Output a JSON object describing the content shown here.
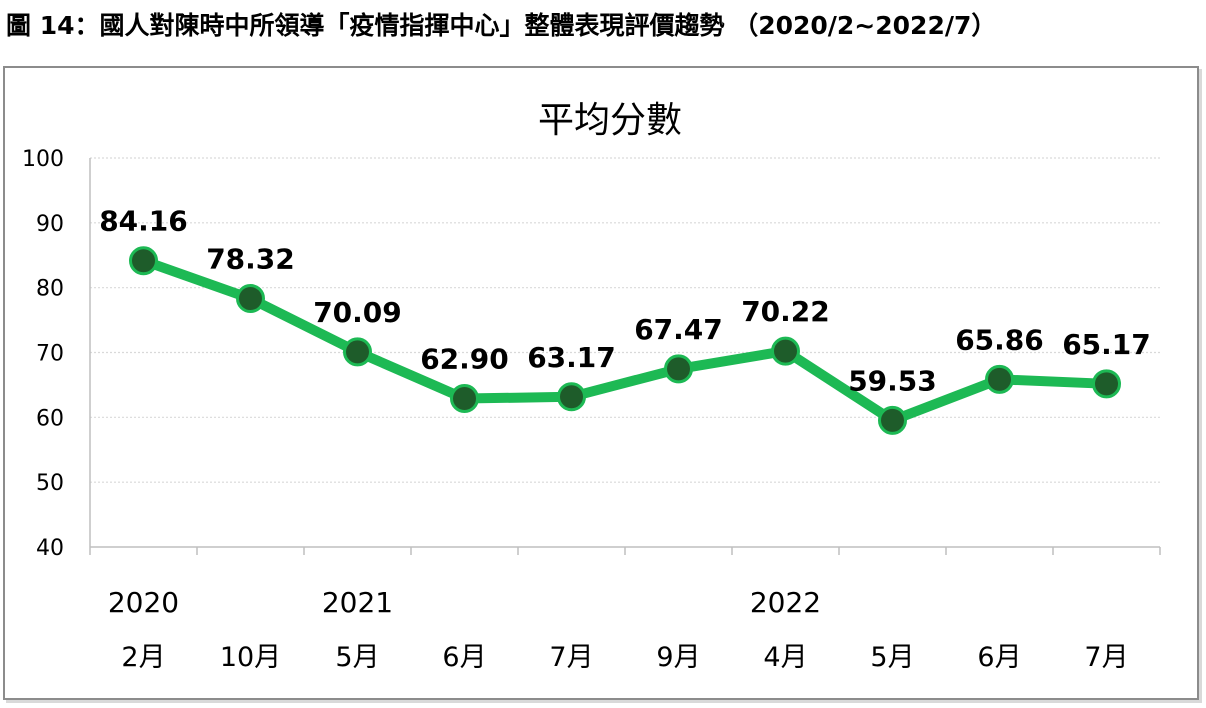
{
  "figure_caption": "圖 14：國人對陳時中所領導「疫情指揮中心」整體表現評價趨勢 （2020/2~2022/7）",
  "colors": {
    "line": "#1db954",
    "marker": "#1e5c2a",
    "grid": "#d9d9d9",
    "axis": "#bfbfbf",
    "frame": "#8c8c8c"
  },
  "chart_data": {
    "type": "line",
    "title": "平均分數",
    "xlabel": "",
    "ylabel": "",
    "categories": [
      "2月",
      "10月",
      "5月",
      "6月",
      "7月",
      "9月",
      "4月",
      "5月",
      "6月",
      "7月"
    ],
    "year_labels": [
      {
        "index": 0,
        "label": "2020"
      },
      {
        "index": 2,
        "label": "2021"
      },
      {
        "index": 6,
        "label": "2022"
      }
    ],
    "series": [
      {
        "values": [
          84.16,
          78.32,
          70.09,
          62.9,
          63.17,
          67.47,
          70.22,
          59.53,
          65.86,
          65.17
        ]
      }
    ],
    "data_labels": [
      "84.16",
      "78.32",
      "70.09",
      "62.90",
      "63.17",
      "67.47",
      "70.22",
      "59.53",
      "65.86",
      "65.17"
    ],
    "ylim": [
      40,
      100
    ],
    "yticks": [
      40,
      50,
      60,
      70,
      80,
      90,
      100
    ],
    "ytick_labels": [
      "40",
      "50",
      "60",
      "70",
      "80",
      "90",
      "100"
    ],
    "grid": true,
    "legend": "none"
  }
}
